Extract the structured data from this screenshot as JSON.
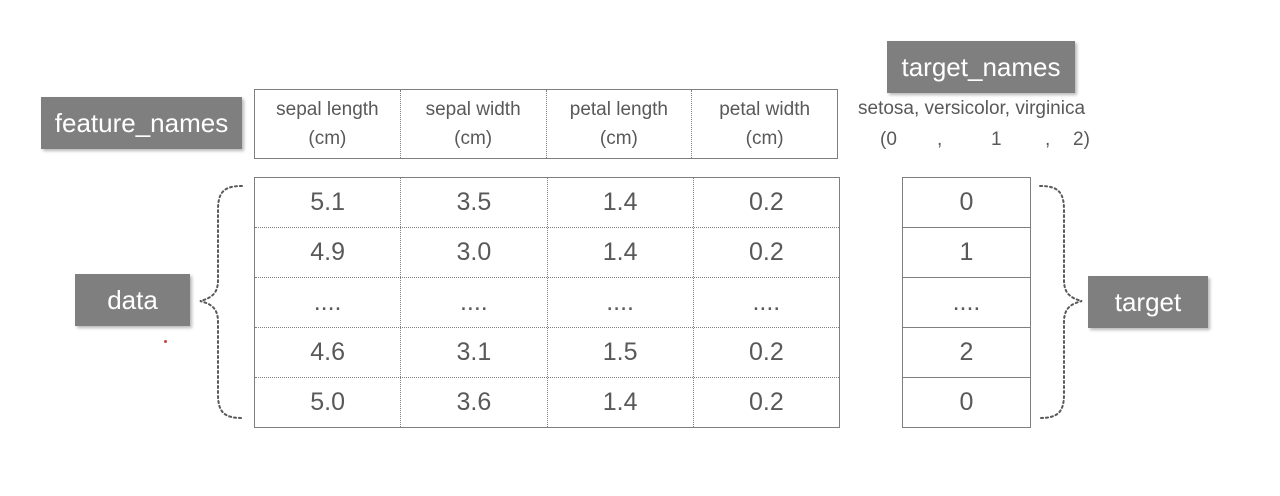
{
  "labels": {
    "feature_names": "feature_names",
    "target_names": "target_names",
    "data": "data",
    "target": "target"
  },
  "feature_headers": [
    {
      "line1": "sepal length",
      "line2": "(cm)"
    },
    {
      "line1": "sepal width",
      "line2": "(cm)"
    },
    {
      "line1": "petal length",
      "line2": "(cm)"
    },
    {
      "line1": "petal width",
      "line2": "(cm)"
    }
  ],
  "data_rows": [
    [
      "5.1",
      "3.5",
      "1.4",
      "0.2"
    ],
    [
      "4.9",
      "3.0",
      "1.4",
      "0.2"
    ],
    [
      "....",
      "....",
      "....",
      "...."
    ],
    [
      "4.6",
      "3.1",
      "1.5",
      "0.2"
    ],
    [
      "5.0",
      "3.6",
      "1.4",
      "0.2"
    ]
  ],
  "target_values": [
    "0",
    "1",
    "....",
    "2",
    "0"
  ],
  "target_names_text": {
    "names": "setosa, versicolor, virginica",
    "codes": [
      "(0",
      ",",
      "1",
      ",",
      "2)"
    ]
  },
  "colors": {
    "label_bg": "#7f7f7f",
    "label_text": "#ffffff",
    "table_border": "#7f7f7f",
    "text": "#595959"
  }
}
